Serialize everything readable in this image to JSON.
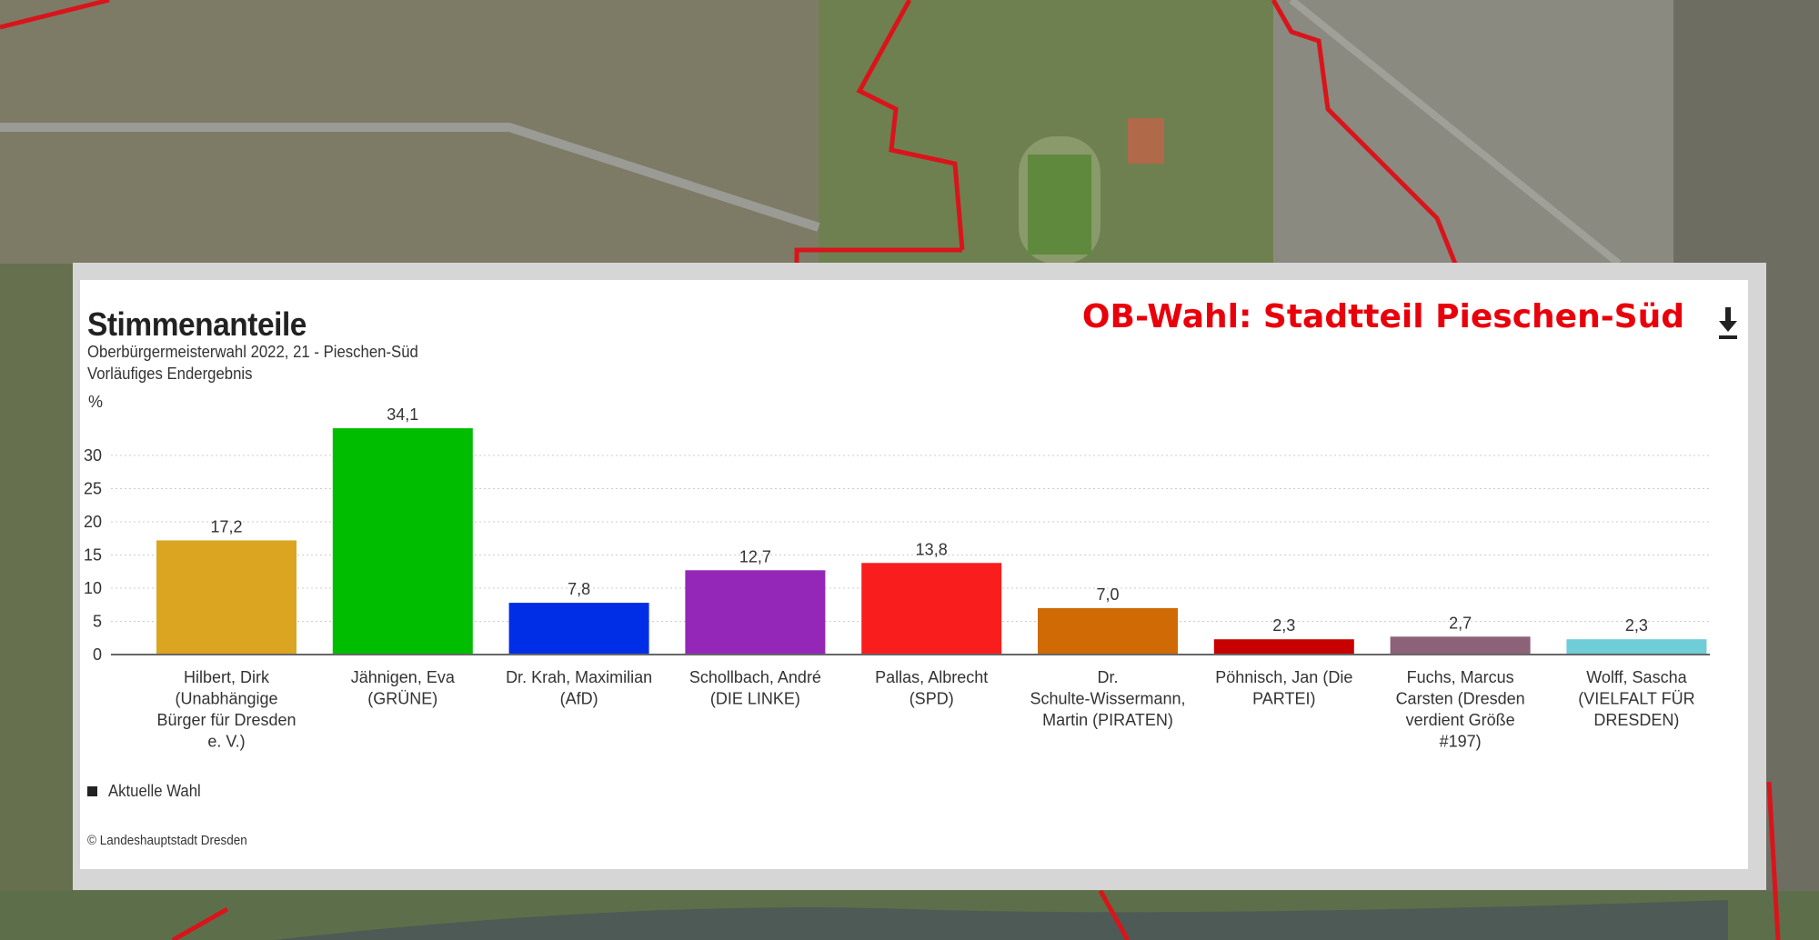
{
  "page": {
    "overlay_title": "OB-Wahl: Stadtteil Pieschen-Süd",
    "accent_color": "#e8000b",
    "download_icon": "download-icon"
  },
  "chart_data": {
    "type": "bar",
    "title": "Stimmenanteile",
    "subtitle": "Oberbürgermeisterwahl 2022, 21 - Pieschen-Süd",
    "subtitle2": "Vorläufiges Endergebnis",
    "ylabel": "%",
    "ylim": [
      0,
      35
    ],
    "yticks": [
      "0",
      "5",
      "10",
      "15",
      "20",
      "25",
      "30"
    ],
    "grid": true,
    "categories": [
      [
        "Hilbert, Dirk",
        "(Unabhängige",
        "Bürger für Dresden",
        "e. V.)"
      ],
      [
        "Jähnigen, Eva",
        "(GRÜNE)"
      ],
      [
        "Dr. Krah, Maximilian",
        "(AfD)"
      ],
      [
        "Schollbach, André",
        "(DIE LINKE)"
      ],
      [
        "Pallas, Albrecht",
        "(SPD)"
      ],
      [
        "Dr.",
        "Schulte-Wissermann,",
        "Martin (PIRATEN)"
      ],
      [
        "Pöhnisch, Jan (Die",
        "PARTEI)"
      ],
      [
        "Fuchs, Marcus",
        "Carsten (Dresden",
        "verdient Größe",
        "#197)"
      ],
      [
        "Wolff, Sascha",
        "(VIELFALT FÜR",
        "DRESDEN)"
      ]
    ],
    "values": [
      17.2,
      34.1,
      7.8,
      12.7,
      13.8,
      7.0,
      2.3,
      2.7,
      2.3
    ],
    "value_labels": [
      "17,2",
      "34,1",
      "7,8",
      "12,7",
      "13,8",
      "7,0",
      "2,3",
      "2,7",
      "2,3"
    ],
    "colors": [
      "#dba521",
      "#00bd00",
      "#002ee6",
      "#9426b8",
      "#fa1d1d",
      "#d06a05",
      "#c80000",
      "#8c6278",
      "#6ecdd6"
    ],
    "series": [
      {
        "name": "Aktuelle Wahl",
        "values": [
          17.2,
          34.1,
          7.8,
          12.7,
          13.8,
          7.0,
          2.3,
          2.7,
          2.3
        ]
      }
    ],
    "legend": "bottom-left",
    "credit": "© Landeshauptstadt Dresden"
  }
}
